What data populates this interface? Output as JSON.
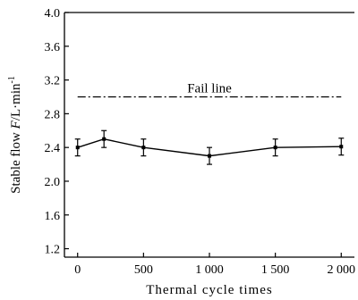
{
  "chart_data": {
    "type": "line",
    "xlabel": "Thermal cycle times",
    "ylabel_main": "Stable flow ",
    "ylabel_var": "F",
    "ylabel_unit": "/L·min",
    "ylabel_sup": "-1",
    "xlim": [
      -100,
      2100
    ],
    "ylim": [
      1.1,
      4.0
    ],
    "x_ticks": [
      0,
      500,
      1000,
      1500,
      2000
    ],
    "x_tick_labels": [
      "0",
      "500",
      "1 000",
      "1 500",
      "2 000"
    ],
    "y_ticks": [
      1.2,
      1.6,
      2.0,
      2.4,
      2.8,
      3.2,
      3.6,
      4.0
    ],
    "y_tick_labels": [
      "1.2",
      "1.6",
      "2.0",
      "2.4",
      "2.8",
      "3.2",
      "3.6",
      "4.0"
    ],
    "grid": false,
    "series": [
      {
        "x": [
          0,
          200,
          500,
          1000,
          1500,
          2000
        ],
        "y": [
          2.4,
          2.5,
          2.4,
          2.3,
          2.4,
          2.41
        ],
        "error": [
          0.1,
          0.1,
          0.1,
          0.1,
          0.1,
          0.1
        ]
      }
    ],
    "reference_line": {
      "y": 3.0,
      "x_range": [
        0,
        2000
      ],
      "style": "dash-dot",
      "label": "Fail line"
    }
  }
}
